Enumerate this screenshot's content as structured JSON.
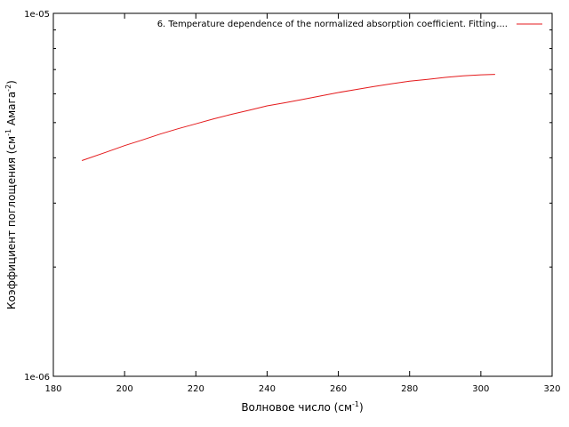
{
  "chart_data": {
    "type": "line",
    "xlabel": "Волновое число (см",
    "xlabel_sup": "-1",
    "xlabel_tail": ")",
    "ylabel_parts": [
      "Коэффициент поглощения (см",
      "-1",
      " Амага",
      "-2",
      ")"
    ],
    "xlim": [
      180,
      320
    ],
    "ylim": [
      1e-06,
      1e-05
    ],
    "yscale": "log",
    "grid": false,
    "legend_position": "top-right",
    "x_ticks": [
      "180",
      "200",
      "220",
      "240",
      "260",
      "280",
      "300",
      "320"
    ],
    "y_ticks": [
      {
        "value": 1e-06,
        "label": "1e-06"
      },
      {
        "value": 1e-05,
        "label": "1e-05"
      }
    ],
    "y_minor_ticks": [
      2e-06,
      3e-06,
      4e-06,
      5e-06,
      6e-06,
      7e-06,
      8e-06,
      9e-06
    ],
    "series": [
      {
        "name": "6. Temperature dependence of the normalized absorption coefficient. Fitting....",
        "color": "#e41a1c",
        "x": [
          188,
          195,
          200,
          205,
          210,
          215,
          220,
          225,
          230,
          235,
          240,
          245,
          250,
          255,
          260,
          265,
          270,
          275,
          280,
          285,
          290,
          295,
          300,
          304
        ],
        "y": [
          3.93e-06,
          4.15e-06,
          4.32e-06,
          4.48e-06,
          4.65e-06,
          4.81e-06,
          4.96e-06,
          5.12e-06,
          5.27e-06,
          5.41e-06,
          5.56e-06,
          5.67e-06,
          5.79e-06,
          5.92e-06,
          6.05e-06,
          6.17e-06,
          6.29e-06,
          6.4e-06,
          6.5e-06,
          6.58e-06,
          6.66e-06,
          6.73e-06,
          6.77e-06,
          6.79e-06
        ]
      }
    ]
  }
}
